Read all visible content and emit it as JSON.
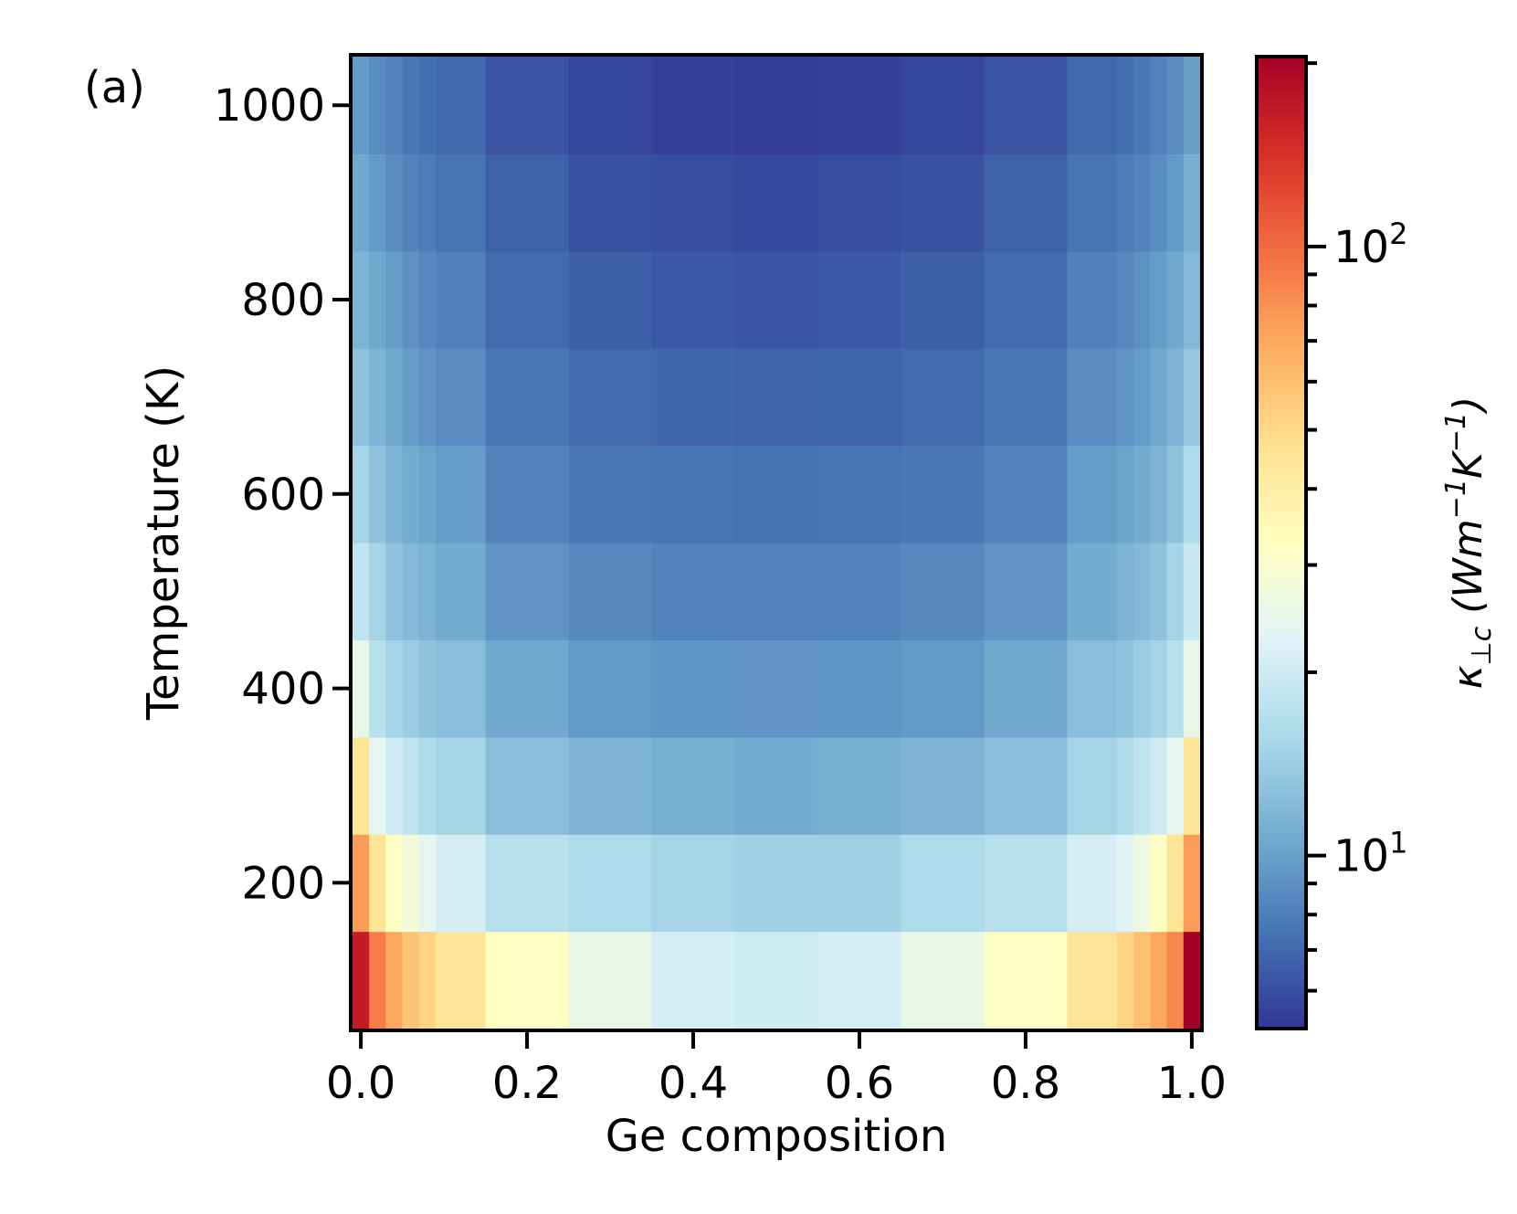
{
  "panel_label": "(a)",
  "chart_data": {
    "type": "heatmap",
    "xlabel": "Ge composition",
    "ylabel": "Temperature (K)",
    "colorbar_label": "κ⊥c (Wm⁻¹K⁻¹)",
    "colorbar_label_parts": {
      "kappa": "κ",
      "sub": "⊥c",
      "open": "(Wm",
      "exp1": "−1",
      "mid": "K",
      "exp2": "−1",
      "close": ")"
    },
    "colormap": "RdYlBu_r",
    "color_scale": "log",
    "color_range": [
      5.2,
      205
    ],
    "colorbar_major_ticks": [
      {
        "value": 10,
        "base": "10",
        "exp": "1"
      },
      {
        "value": 100,
        "base": "10",
        "exp": "2"
      }
    ],
    "colorbar_minor_ticks": [
      6,
      7,
      8,
      9,
      20,
      30,
      40,
      50,
      60,
      70,
      80,
      90,
      200
    ],
    "xlim": [
      -0.01,
      1.01
    ],
    "ylim": [
      50,
      1050
    ],
    "xticks": [
      0.0,
      0.2,
      0.4,
      0.6,
      0.8,
      1.0
    ],
    "xtick_labels": [
      "0.0",
      "0.2",
      "0.4",
      "0.6",
      "0.8",
      "1.0"
    ],
    "yticks": [
      200,
      400,
      600,
      800,
      1000
    ],
    "ytick_labels": [
      "200",
      "400",
      "600",
      "800",
      "1000"
    ],
    "x_edges": [
      -0.01,
      0.01,
      0.03,
      0.05,
      0.07,
      0.09,
      0.15,
      0.25,
      0.35,
      0.45,
      0.55,
      0.65,
      0.75,
      0.85,
      0.91,
      0.93,
      0.95,
      0.97,
      0.99,
      1.01
    ],
    "x_centers": [
      0.0,
      0.02,
      0.04,
      0.06,
      0.08,
      0.1,
      0.2,
      0.3,
      0.4,
      0.5,
      0.6,
      0.7,
      0.8,
      0.9,
      0.92,
      0.94,
      0.96,
      0.98,
      1.0
    ],
    "temperatures": [
      100,
      200,
      300,
      400,
      500,
      600,
      700,
      800,
      900,
      1000
    ],
    "values": [
      [
        165,
        90,
        70,
        58,
        52,
        44,
        32,
        25,
        21,
        20,
        21,
        25,
        32,
        45,
        52,
        60,
        70,
        85,
        205
      ],
      [
        75,
        45,
        32,
        28,
        24,
        21,
        17,
        16,
        15,
        14.5,
        14.5,
        16,
        17,
        21,
        23,
        26,
        32,
        45,
        75
      ],
      [
        45,
        24,
        20,
        18,
        16,
        15,
        12.5,
        11.5,
        11,
        10.8,
        11,
        11.5,
        12.5,
        15,
        16,
        18,
        20,
        24,
        45
      ],
      [
        25,
        17,
        15,
        14,
        13,
        12.5,
        10.5,
        9.5,
        9.3,
        9.2,
        9.3,
        9.5,
        10.5,
        12.5,
        13,
        14,
        15,
        17,
        25
      ],
      [
        18,
        15,
        13,
        12,
        11.5,
        10.8,
        9.2,
        8.6,
        8.3,
        8.2,
        8.3,
        8.6,
        9.2,
        10.8,
        11.5,
        12,
        13,
        15,
        19
      ],
      [
        15,
        13,
        11.5,
        10.8,
        10.2,
        9.7,
        8.3,
        7.7,
        7.5,
        7.4,
        7.5,
        7.7,
        8.3,
        9.7,
        10.2,
        10.8,
        11.5,
        13,
        16
      ],
      [
        13,
        11.5,
        10.5,
        9.7,
        9.2,
        8.8,
        7.6,
        7.1,
        6.9,
        6.8,
        6.9,
        7.1,
        7.6,
        8.8,
        9.2,
        9.7,
        10.5,
        11.5,
        13.5
      ],
      [
        11.5,
        10.5,
        9.7,
        9,
        8.5,
        8.1,
        7.1,
        6.6,
        6.3,
        6.2,
        6.3,
        6.6,
        7.1,
        8.1,
        8.5,
        9,
        9.7,
        10.5,
        12
      ],
      [
        10.5,
        9.6,
        8.8,
        8.3,
        7.9,
        7.5,
        6.7,
        6.1,
        5.9,
        5.8,
        5.9,
        6.1,
        6.7,
        7.5,
        7.9,
        8.3,
        8.8,
        9.6,
        11
      ],
      [
        9.6,
        8.8,
        8.2,
        7.7,
        7.3,
        7,
        6.2,
        5.7,
        5.5,
        5.4,
        5.5,
        5.7,
        6.2,
        7,
        7.3,
        7.7,
        8.2,
        8.8,
        10
      ]
    ]
  }
}
